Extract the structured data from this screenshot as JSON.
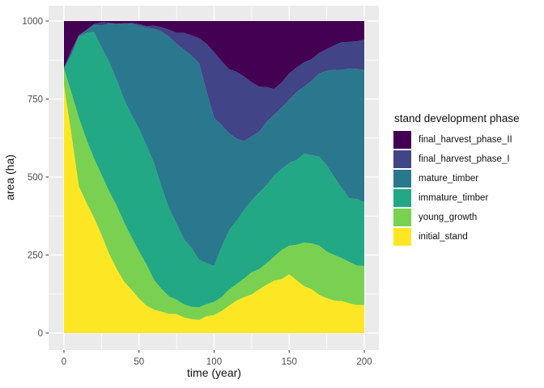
{
  "chart_data": {
    "type": "area",
    "subtype": "stacked-area",
    "xlabel": "time (year)",
    "ylabel": "area (ha)",
    "legend_title": "stand development phase",
    "xlim": [
      0,
      200
    ],
    "ylim": [
      0,
      1000
    ],
    "x_ticks": [
      0,
      50,
      100,
      150,
      200
    ],
    "y_ticks": [
      0,
      250,
      500,
      750,
      1000
    ],
    "x_minor_ticks": [
      25,
      75,
      125,
      175
    ],
    "y_minor_ticks": [
      125,
      375,
      625,
      875
    ],
    "grid": "on",
    "stack_total": 1000,
    "legend_position": "right",
    "x": [
      0,
      10,
      20,
      30,
      40,
      50,
      60,
      70,
      80,
      90,
      100,
      110,
      120,
      130,
      140,
      150,
      160,
      170,
      180,
      190,
      200
    ],
    "series": [
      {
        "name": "initial_stand",
        "color": "#fde725",
        "values": [
          795,
          470,
          370,
          255,
          165,
          110,
          75,
          62,
          50,
          42,
          58,
          88,
          115,
          140,
          168,
          188,
          150,
          122,
          104,
          95,
          90
        ]
      },
      {
        "name": "young_growth",
        "color": "#7ad151",
        "values": [
          53,
          220,
          190,
          200,
          190,
          152,
          95,
          55,
          42,
          41,
          42,
          52,
          60,
          65,
          77,
          92,
          140,
          158,
          146,
          133,
          125
        ]
      },
      {
        "name": "immature_timber",
        "color": "#22a884",
        "values": [
          0,
          260,
          405,
          415,
          395,
          393,
          375,
          283,
          208,
          152,
          115,
          190,
          220,
          245,
          260,
          265,
          285,
          285,
          250,
          204,
          205
        ]
      },
      {
        "name": "mature_timber",
        "color": "#2a788e",
        "values": [
          0,
          2,
          23,
          122,
          240,
          330,
          430,
          550,
          608,
          630,
          475,
          310,
          220,
          195,
          195,
          203,
          215,
          267,
          344,
          416,
          423
        ]
      },
      {
        "name": "final_harvest_phase_I",
        "color": "#414487",
        "values": [
          2,
          3,
          2,
          2,
          3,
          5,
          10,
          22,
          54,
          80,
          210,
          205,
          207,
          145,
          82,
          84,
          78,
          66,
          78,
          85,
          97
        ]
      },
      {
        "name": "final_harvest_phase_II",
        "color": "#440154",
        "values": [
          150,
          45,
          10,
          6,
          7,
          10,
          15,
          28,
          38,
          55,
          100,
          155,
          178,
          210,
          218,
          168,
          132,
          102,
          78,
          67,
          60
        ]
      }
    ],
    "legend_order": [
      "final_harvest_phase_II",
      "final_harvest_phase_I",
      "mature_timber",
      "immature_timber",
      "young_growth",
      "initial_stand"
    ],
    "colors": {
      "panel_bg": "#ebebeb",
      "grid": "#ffffff",
      "tick": "#333333",
      "tick_label": "#4d4d4d",
      "axis_title": "#111111",
      "background": "#ffffff"
    }
  }
}
